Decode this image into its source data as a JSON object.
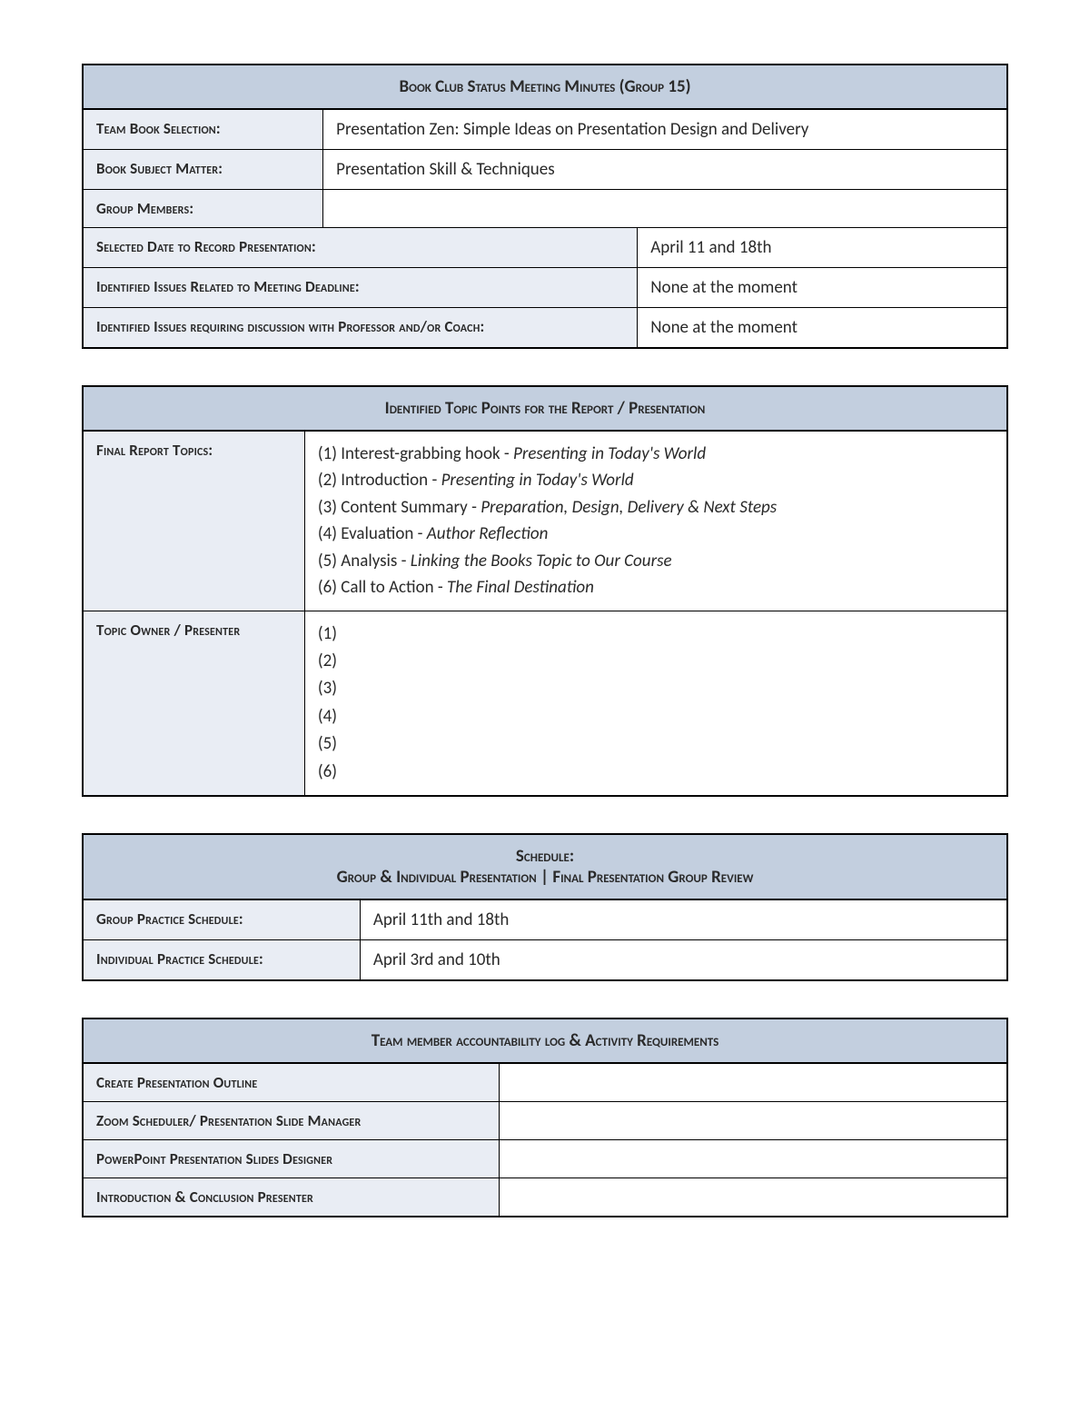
{
  "colors": {
    "header_bg": "#c3cfdf",
    "label_bg": "#e9edf4",
    "value_bg": "#ffffff",
    "border": "#000000",
    "text": "#2a2a2a"
  },
  "status": {
    "title": "Book Club Status Meeting Minutes (Group 15)",
    "rows": {
      "team_book_label": "Team Book Selection:",
      "team_book_value": "Presentation Zen: Simple Ideas on Presentation Design and Delivery",
      "subject_label": "Book Subject Matter:",
      "subject_value": "Presentation Skill & Techniques",
      "members_label": "Group Members:",
      "members_value": "",
      "date_label": "Selected Date to Record Presentation:",
      "date_value": "April 11 and 18th",
      "deadline_issues_label": "Identified Issues Related to Meeting Deadline:",
      "deadline_issues_value": "None at the moment",
      "prof_issues_label": "Identified Issues requiring discussion with Professor and/or Coach:",
      "prof_issues_value": "None at the moment"
    }
  },
  "topics": {
    "title": "Identified Topic Points for the Report / Presentation",
    "final_label": "Final Report Topics:",
    "items": [
      {
        "n": "(1)",
        "plain": " Interest-grabbing hook - ",
        "italic": "Presenting in Today's World"
      },
      {
        "n": "(2)",
        "plain": " Introduction - ",
        "italic": "Presenting in Today's World"
      },
      {
        "n": "(3)",
        "plain": " Content Summary - ",
        "italic": "Preparation, Design, Delivery & Next Steps"
      },
      {
        "n": "(4)",
        "plain": " Evaluation - ",
        "italic": "Author Reflection"
      },
      {
        "n": "(5)",
        "plain": " Analysis - ",
        "italic": "Linking the Books Topic to Our Course"
      },
      {
        "n": "(6)",
        "plain": " Call to Action - ",
        "italic": "The Final Destination"
      }
    ],
    "owner_label": "Topic Owner / Presenter",
    "owners": [
      "(1)",
      "(2)",
      "(3)",
      "(4)",
      "(5)",
      "(6)"
    ]
  },
  "schedule": {
    "title_line1": "Schedule:",
    "title_line2": "Group & Individual Presentation | Final Presentation Group Review",
    "group_label": "Group Practice Schedule:",
    "group_value": "April 11th and 18th",
    "indiv_label": "Individual Practice Schedule:",
    "indiv_value": "April 3rd and 10th"
  },
  "accountability": {
    "title": "Team member accountability log & Activity Requirements",
    "rows": [
      {
        "label": "Create Presentation Outline",
        "value": ""
      },
      {
        "label": "Zoom Scheduler/ Presentation Slide Manager",
        "value": ""
      },
      {
        "label": "PowerPoint Presentation Slides Designer",
        "value": ""
      },
      {
        "label": "Introduction & Conclusion Presenter",
        "value": ""
      }
    ]
  }
}
